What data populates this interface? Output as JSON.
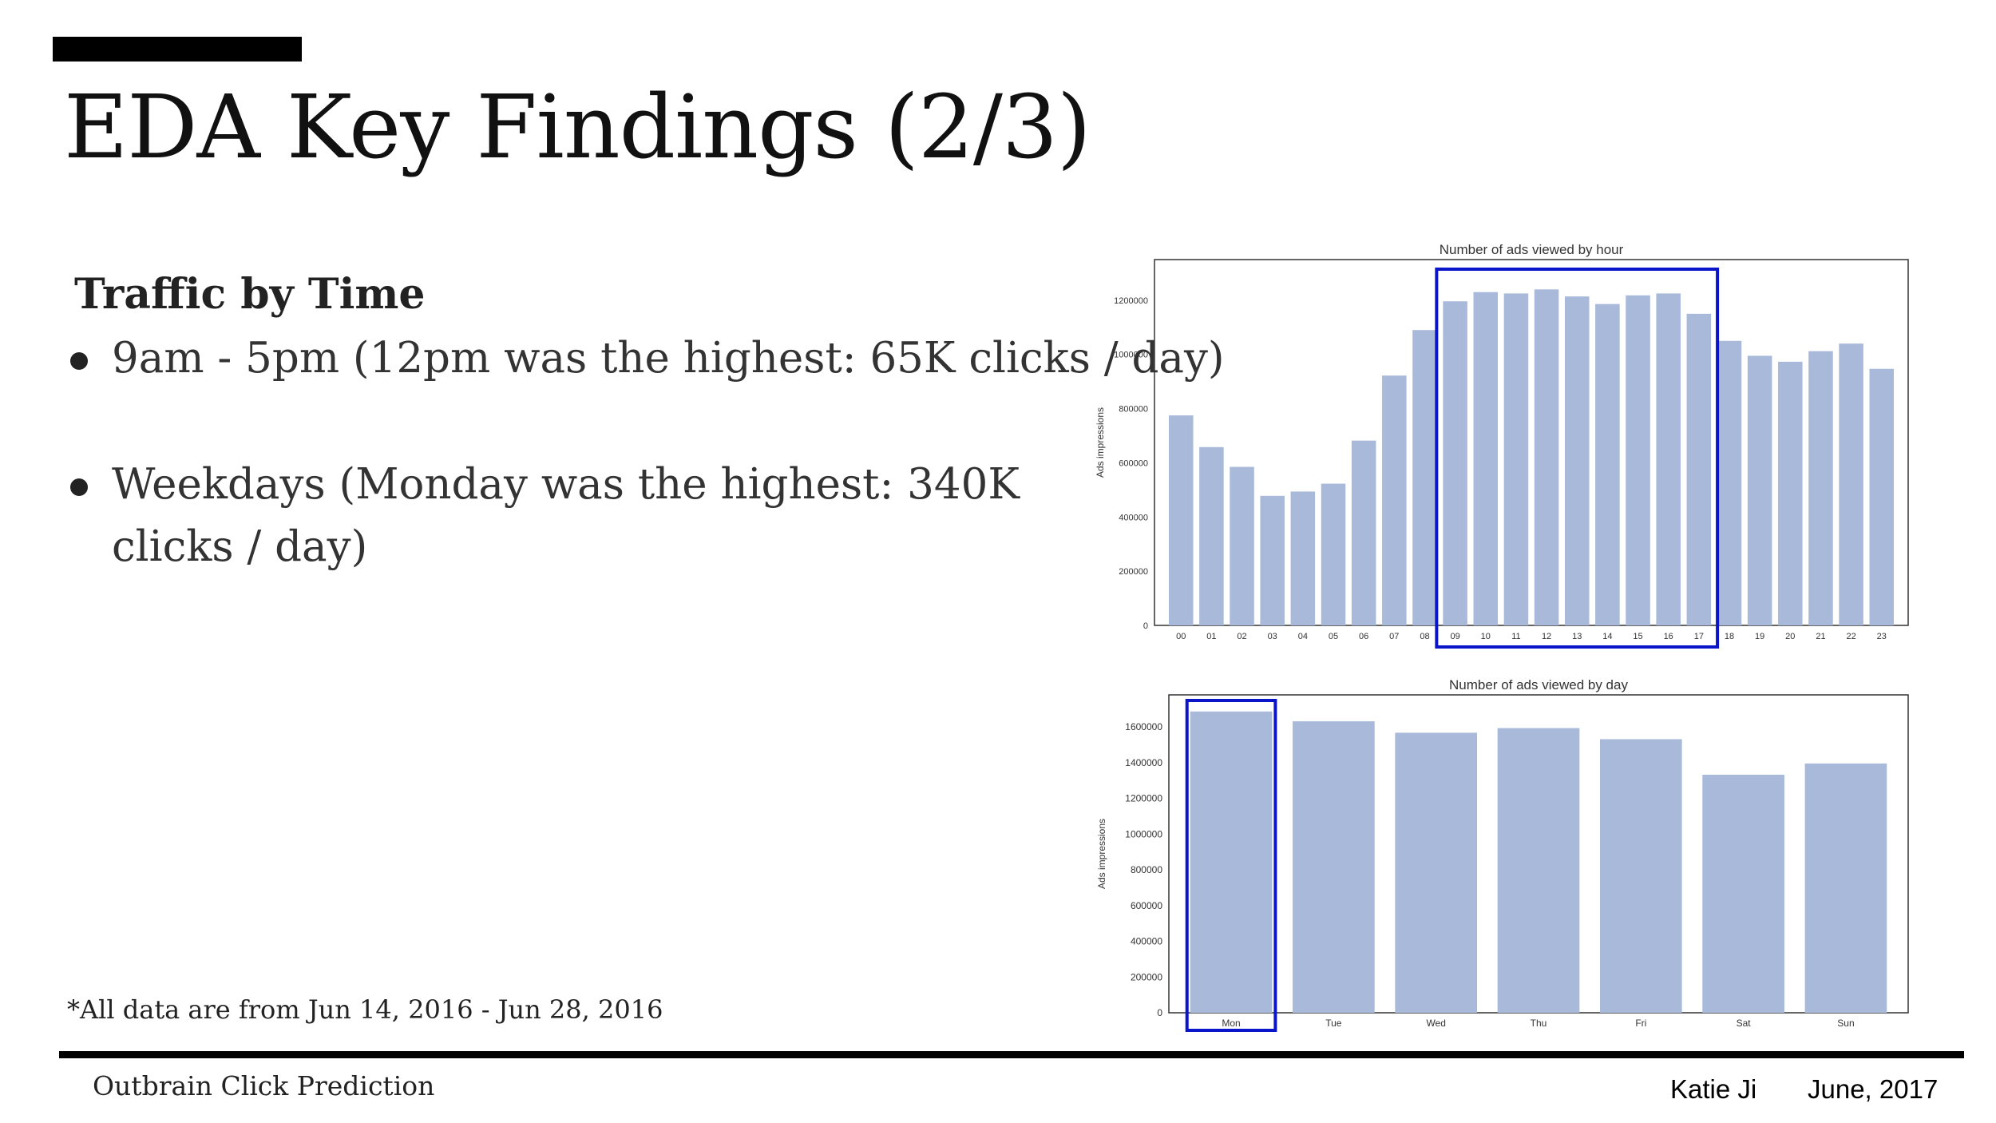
{
  "slide": {
    "title": "EDA Key Findings (2/3)",
    "subheading": "Traffic by Time",
    "bullets": [
      "9am - 5pm (12pm was the highest: 65K clicks / day)",
      "Weekdays (Monday was the highest: 340K clicks / day)"
    ],
    "footnote": "*All data are from Jun 14, 2016 - Jun 28, 2016",
    "footer_left": "Outbrain Click Prediction",
    "footer_author": "Katie Ji",
    "footer_date": "June, 2017"
  },
  "colors": {
    "bar": "#a8b9da",
    "highlight": "#0a14c8"
  },
  "chart_data": [
    {
      "type": "bar",
      "title": "Number of ads viewed by hour",
      "ylabel": "Ads impressions",
      "xlabel": "",
      "categories": [
        "00",
        "01",
        "02",
        "03",
        "04",
        "05",
        "06",
        "07",
        "08",
        "09",
        "10",
        "11",
        "12",
        "13",
        "14",
        "15",
        "16",
        "17",
        "18",
        "19",
        "20",
        "21",
        "22",
        "23"
      ],
      "values": [
        775000,
        658000,
        585000,
        478000,
        494000,
        523000,
        682000,
        922000,
        1090000,
        1196000,
        1230000,
        1225000,
        1240000,
        1214000,
        1186000,
        1218000,
        1225000,
        1150000,
        1050000,
        995000,
        973000,
        1012000,
        1040000,
        947000
      ],
      "ylim": [
        0,
        1350000
      ],
      "yticks": [
        0,
        200000,
        400000,
        600000,
        800000,
        1000000,
        1200000
      ],
      "highlight_range": [
        "09",
        "17"
      ],
      "grid": false
    },
    {
      "type": "bar",
      "title": "Number of ads viewed by day",
      "ylabel": "Ads impressions",
      "xlabel": "",
      "categories": [
        "Mon",
        "Tue",
        "Wed",
        "Thu",
        "Fri",
        "Sat",
        "Sun"
      ],
      "values": [
        1687000,
        1632000,
        1568000,
        1594000,
        1532000,
        1333000,
        1396000
      ],
      "ylim": [
        0,
        1780000
      ],
      "yticks": [
        0,
        200000,
        400000,
        600000,
        800000,
        1000000,
        1200000,
        1400000,
        1600000
      ],
      "highlight_range": [
        "Mon",
        "Mon"
      ],
      "grid": false
    }
  ]
}
